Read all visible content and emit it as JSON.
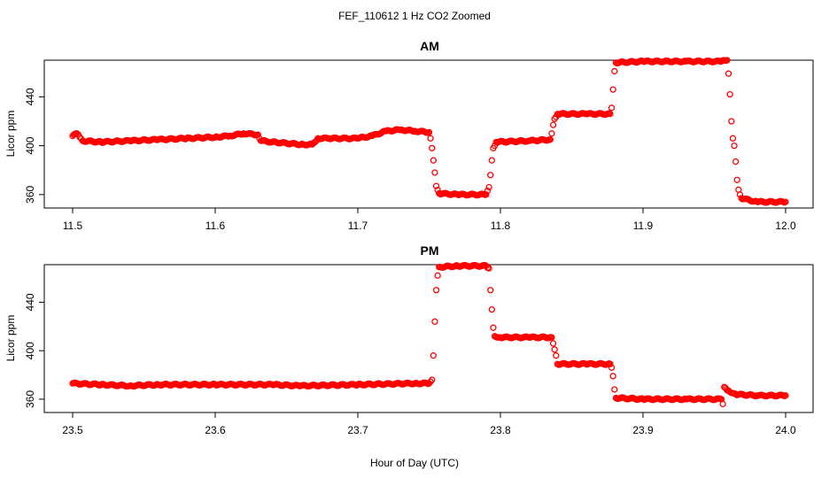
{
  "figure": {
    "title": "FEF_110612  1 Hz CO2 Zoomed",
    "xlabel": "Hour of Day (UTC)"
  },
  "colors": {
    "points": "#ff0000",
    "axis": "#000000",
    "background": "#ffffff"
  },
  "chart_data": [
    {
      "type": "scatter",
      "title": "AM",
      "ylabel": "Licor ppm",
      "xlim": [
        11.5,
        12.0
      ],
      "ylim": [
        349,
        470
      ],
      "xticks": [
        "11.5",
        "11.6",
        "11.7",
        "11.8",
        "11.9",
        "12.0"
      ],
      "yticks": [
        "360",
        "400",
        "440"
      ],
      "marker": "open-circle",
      "series": [
        {
          "points": [
            [
              11.5,
              408
            ],
            [
              11.503,
              410
            ],
            [
              11.505,
              407
            ],
            [
              11.507,
              404
            ],
            [
              11.52,
              403
            ],
            [
              11.54,
              404
            ],
            [
              11.56,
              405
            ],
            [
              11.58,
              406
            ],
            [
              11.6,
              407
            ],
            [
              11.61,
              408
            ],
            [
              11.62,
              410
            ],
            [
              11.63,
              409
            ],
            [
              11.632,
              404
            ],
            [
              11.64,
              403
            ],
            [
              11.66,
              401
            ],
            [
              11.668,
              401
            ],
            [
              11.672,
              406
            ],
            [
              11.68,
              406
            ],
            [
              11.7,
              406
            ],
            [
              11.71,
              408
            ],
            [
              11.72,
              412
            ],
            [
              11.73,
              413
            ],
            [
              11.74,
              412
            ],
            [
              11.75,
              411
            ],
            [
              11.751,
              406
            ],
            [
              11.752,
              398
            ],
            [
              11.753,
              388
            ],
            [
              11.754,
              378
            ],
            [
              11.755,
              367
            ],
            [
              11.757,
              361
            ],
            [
              11.77,
              360
            ],
            [
              11.79,
              360
            ],
            [
              11.792,
              366
            ],
            [
              11.793,
              376
            ],
            [
              11.794,
              388
            ],
            [
              11.795,
              398
            ],
            [
              11.797,
              403
            ],
            [
              11.82,
              404
            ],
            [
              11.835,
              405
            ],
            [
              11.836,
              410
            ],
            [
              11.837,
              417
            ],
            [
              11.838,
              422
            ],
            [
              11.84,
              426
            ],
            [
              11.86,
              426
            ],
            [
              11.877,
              426
            ],
            [
              11.878,
              431
            ],
            [
              11.879,
              446
            ],
            [
              11.88,
              461
            ],
            [
              11.881,
              468
            ],
            [
              11.9,
              469
            ],
            [
              11.93,
              469
            ],
            [
              11.955,
              469
            ],
            [
              11.959,
              470
            ],
            [
              11.96,
              459
            ],
            [
              11.961,
              442
            ],
            [
              11.962,
              420
            ],
            [
              11.963,
              406
            ],
            [
              11.964,
              400
            ],
            [
              11.965,
              387
            ],
            [
              11.966,
              372
            ],
            [
              11.967,
              364
            ],
            [
              11.969,
              357
            ],
            [
              11.98,
              354
            ],
            [
              12.0,
              354
            ]
          ]
        }
      ]
    },
    {
      "type": "scatter",
      "title": "PM",
      "ylabel": "Licor ppm",
      "xlim": [
        23.5,
        24.0
      ],
      "ylim": [
        349,
        471
      ],
      "xticks": [
        "23.5",
        "23.6",
        "23.7",
        "23.8",
        "23.9",
        "24.0"
      ],
      "yticks": [
        "360",
        "400",
        "440"
      ],
      "marker": "open-circle",
      "series": [
        {
          "points": [
            [
              23.5,
              373
            ],
            [
              23.52,
              372
            ],
            [
              23.54,
              371
            ],
            [
              23.56,
              372
            ],
            [
              23.6,
              372
            ],
            [
              23.64,
              372
            ],
            [
              23.66,
              371
            ],
            [
              23.7,
              372
            ],
            [
              23.74,
              373
            ],
            [
              23.75,
              373
            ],
            [
              23.752,
              376
            ],
            [
              23.753,
              396
            ],
            [
              23.754,
              424
            ],
            [
              23.755,
              450
            ],
            [
              23.756,
              462
            ],
            [
              23.757,
              469
            ],
            [
              23.77,
              470
            ],
            [
              23.79,
              470
            ],
            [
              23.792,
              468
            ],
            [
              23.793,
              450
            ],
            [
              23.794,
              434
            ],
            [
              23.795,
              419
            ],
            [
              23.796,
              412
            ],
            [
              23.8,
              411
            ],
            [
              23.82,
              411
            ],
            [
              23.836,
              411
            ],
            [
              23.837,
              406
            ],
            [
              23.838,
              401
            ],
            [
              23.839,
              396
            ],
            [
              23.84,
              389
            ],
            [
              23.86,
              389
            ],
            [
              23.877,
              389
            ],
            [
              23.878,
              386
            ],
            [
              23.879,
              379
            ],
            [
              23.88,
              368
            ],
            [
              23.881,
              361
            ],
            [
              23.9,
              360
            ],
            [
              23.93,
              360
            ],
            [
              23.955,
              360
            ],
            [
              23.956,
              356
            ],
            [
              23.957,
              370
            ],
            [
              23.96,
              367
            ],
            [
              23.965,
              364
            ],
            [
              23.98,
              363
            ],
            [
              24.0,
              363
            ]
          ]
        }
      ]
    }
  ]
}
